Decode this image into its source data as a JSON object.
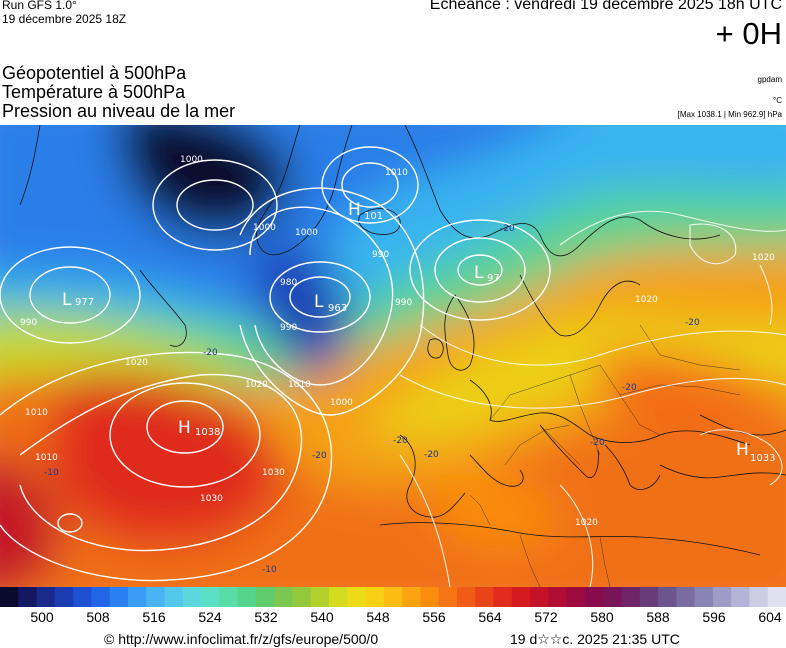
{
  "header": {
    "run": "Run GFS 1.0°",
    "run_date": "19 décembre 2025 18Z",
    "valid": "Echéance : vendredi 19 décembre 2025 18h UTC",
    "lead": "+ 0H"
  },
  "fields": [
    "Géopotentiel à 500hPa",
    "Température à 500hPa",
    "Pression au niveau de la mer"
  ],
  "units": {
    "geopotential": "gpdam",
    "temperature": "°C",
    "pressure_range": "[Max 1038.1 | Min 962.9] hPa"
  },
  "pressure_systems": [
    {
      "type": "H",
      "value": "1038"
    },
    {
      "type": "L",
      "value": "963"
    },
    {
      "type": "L",
      "value": "977"
    },
    {
      "type": "L",
      "value": "97"
    },
    {
      "type": "H",
      "value": "101"
    },
    {
      "type": "H",
      "value": "1033"
    }
  ],
  "isobar_labels": [
    "1000",
    "1000",
    "1010",
    "1000",
    "990",
    "980",
    "990",
    "1010",
    "1020",
    "1020",
    "1030",
    "1030",
    "1020",
    "1010",
    "990",
    "990",
    "1000",
    "1020",
    "1020",
    "1010"
  ],
  "temp_labels": [
    "-20",
    "-20",
    "-20",
    "-20",
    "-20",
    "-10",
    "-10",
    "-20",
    "-20",
    "-20"
  ],
  "colorbar": {
    "colors": [
      "#0a0a2e",
      "#141860",
      "#1a2a8c",
      "#1c3cb4",
      "#1e50d2",
      "#2066e6",
      "#2a80f0",
      "#3a9cf4",
      "#48b4f4",
      "#54c8ec",
      "#5cd8dc",
      "#5ce0c4",
      "#58dca8",
      "#54d48c",
      "#60cc6c",
      "#7ac850",
      "#94c83c",
      "#b4d02c",
      "#d4dc20",
      "#ecdc18",
      "#f8d014",
      "#fcbc12",
      "#fca410",
      "#fa8c10",
      "#f67414",
      "#f05c16",
      "#e84418",
      "#e02c1c",
      "#d41c20",
      "#c41228",
      "#b00c34",
      "#9c0a40",
      "#880c4c",
      "#7a1458",
      "#6e2466",
      "#683c78",
      "#6c548c",
      "#7a6ca0",
      "#8a84b4",
      "#9e9cc6",
      "#b4b4d6",
      "#ccccE4",
      "#e0e0ee"
    ],
    "ticks": [
      "500",
      "508",
      "516",
      "524",
      "532",
      "540",
      "548",
      "556",
      "564",
      "572",
      "580",
      "588",
      "596",
      "604"
    ]
  },
  "footer": {
    "url": "© http://www.infoclimat.fr/z/gfs/europe/500/0",
    "generated": "19 d☆☆c. 2025 21:35 UTC"
  }
}
